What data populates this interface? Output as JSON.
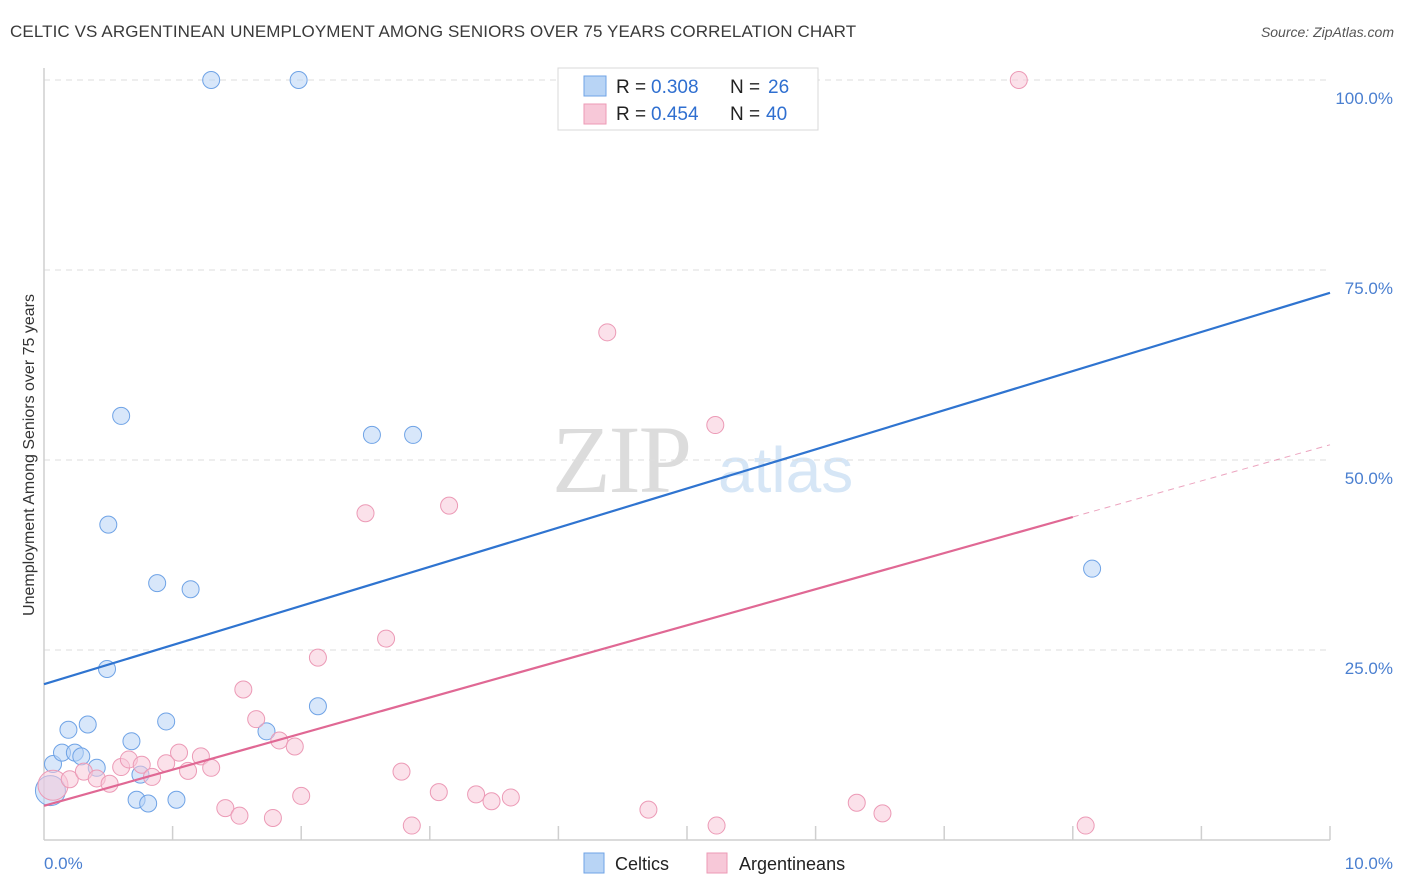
{
  "title": "CELTIC VS ARGENTINEAN UNEMPLOYMENT AMONG SENIORS OVER 75 YEARS CORRELATION CHART",
  "source": "Source: ZipAtlas.com",
  "watermark": {
    "zip": "ZIP",
    "atlas": "atlas"
  },
  "chart_data": {
    "type": "scatter",
    "title": "CELTIC VS ARGENTINEAN UNEMPLOYMENT AMONG SENIORS OVER 75 YEARS CORRELATION CHART",
    "xlabel": "",
    "ylabel": "Unemployment Among Seniors over 75 years",
    "xlim": [
      0,
      10
    ],
    "ylim": [
      0,
      100
    ],
    "x_tick_labels": {
      "min": "0.0%",
      "max": "10.0%"
    },
    "y_ticks": [
      {
        "value": 25,
        "label": "25.0%"
      },
      {
        "value": 50,
        "label": "50.0%"
      },
      {
        "value": 75,
        "label": "75.0%"
      },
      {
        "value": 100,
        "label": "100.0%"
      }
    ],
    "grid": true,
    "legend": {
      "position": "top-center",
      "rows": [
        {
          "series": "Celtics",
          "r_label": "R = ",
          "r_value": "0.308",
          "n_label": "N = ",
          "n_value": "26"
        },
        {
          "series": "Argentineans",
          "r_label": "R = ",
          "r_value": "0.454",
          "n_label": "N = ",
          "n_value": "40"
        }
      ]
    },
    "series": [
      {
        "name": "Celtics",
        "color": "#6fa3e6",
        "fill": "#b8d4f5",
        "line_color": "#2f74d0",
        "trend": {
          "x0": 0,
          "y0": 20.5,
          "x1": 10,
          "y1": 72
        },
        "points": [
          {
            "x": 0.05,
            "y": 6.5,
            "big": true
          },
          {
            "x": 0.07,
            "y": 10
          },
          {
            "x": 0.14,
            "y": 11.5
          },
          {
            "x": 0.19,
            "y": 14.5
          },
          {
            "x": 0.24,
            "y": 11.5
          },
          {
            "x": 0.29,
            "y": 11
          },
          {
            "x": 0.34,
            "y": 15.2
          },
          {
            "x": 0.41,
            "y": 9.5
          },
          {
            "x": 0.49,
            "y": 22.5
          },
          {
            "x": 0.5,
            "y": 41.5
          },
          {
            "x": 0.6,
            "y": 55.8
          },
          {
            "x": 0.68,
            "y": 13
          },
          {
            "x": 0.72,
            "y": 5.3
          },
          {
            "x": 0.75,
            "y": 8.6
          },
          {
            "x": 0.81,
            "y": 4.8
          },
          {
            "x": 0.88,
            "y": 33.8
          },
          {
            "x": 0.95,
            "y": 15.6
          },
          {
            "x": 1.03,
            "y": 5.3
          },
          {
            "x": 1.14,
            "y": 33
          },
          {
            "x": 1.3,
            "y": 100
          },
          {
            "x": 1.73,
            "y": 14.3
          },
          {
            "x": 1.98,
            "y": 100
          },
          {
            "x": 2.13,
            "y": 17.6
          },
          {
            "x": 2.55,
            "y": 53.3
          },
          {
            "x": 2.87,
            "y": 53.3
          },
          {
            "x": 8.15,
            "y": 35.7
          }
        ]
      },
      {
        "name": "Argentineans",
        "color": "#ec9ab6",
        "fill": "#f7c8d8",
        "line_color": "#e06894",
        "trend": {
          "x0": 0,
          "y0": 4.5,
          "x1": 8,
          "y1": 42.5,
          "dash_x1": 10,
          "dash_y1": 52
        },
        "points": [
          {
            "x": 0.07,
            "y": 7.2,
            "big": true
          },
          {
            "x": 0.2,
            "y": 8
          },
          {
            "x": 0.31,
            "y": 9
          },
          {
            "x": 0.41,
            "y": 8.1
          },
          {
            "x": 0.51,
            "y": 7.4
          },
          {
            "x": 0.6,
            "y": 9.6
          },
          {
            "x": 0.66,
            "y": 10.6
          },
          {
            "x": 0.76,
            "y": 9.9
          },
          {
            "x": 0.84,
            "y": 8.3
          },
          {
            "x": 0.95,
            "y": 10.1
          },
          {
            "x": 1.05,
            "y": 11.5
          },
          {
            "x": 1.12,
            "y": 9.1
          },
          {
            "x": 1.22,
            "y": 11
          },
          {
            "x": 1.3,
            "y": 9.5
          },
          {
            "x": 1.41,
            "y": 4.2
          },
          {
            "x": 1.52,
            "y": 3.2
          },
          {
            "x": 1.55,
            "y": 19.8
          },
          {
            "x": 1.65,
            "y": 15.9
          },
          {
            "x": 1.78,
            "y": 2.9
          },
          {
            "x": 1.83,
            "y": 13.1
          },
          {
            "x": 1.95,
            "y": 12.3
          },
          {
            "x": 2.0,
            "y": 5.8
          },
          {
            "x": 2.13,
            "y": 24
          },
          {
            "x": 2.5,
            "y": 43
          },
          {
            "x": 2.66,
            "y": 26.5
          },
          {
            "x": 2.78,
            "y": 9
          },
          {
            "x": 2.86,
            "y": 1.9
          },
          {
            "x": 3.07,
            "y": 6.3
          },
          {
            "x": 3.15,
            "y": 44
          },
          {
            "x": 3.36,
            "y": 6
          },
          {
            "x": 3.48,
            "y": 5.1
          },
          {
            "x": 3.63,
            "y": 5.6
          },
          {
            "x": 4.38,
            "y": 66.8
          },
          {
            "x": 4.7,
            "y": 4
          },
          {
            "x": 5.22,
            "y": 54.6
          },
          {
            "x": 5.23,
            "y": 1.9
          },
          {
            "x": 6.32,
            "y": 4.9
          },
          {
            "x": 6.52,
            "y": 3.5
          },
          {
            "x": 7.58,
            "y": 100
          },
          {
            "x": 8.1,
            "y": 1.9
          }
        ]
      }
    ]
  }
}
